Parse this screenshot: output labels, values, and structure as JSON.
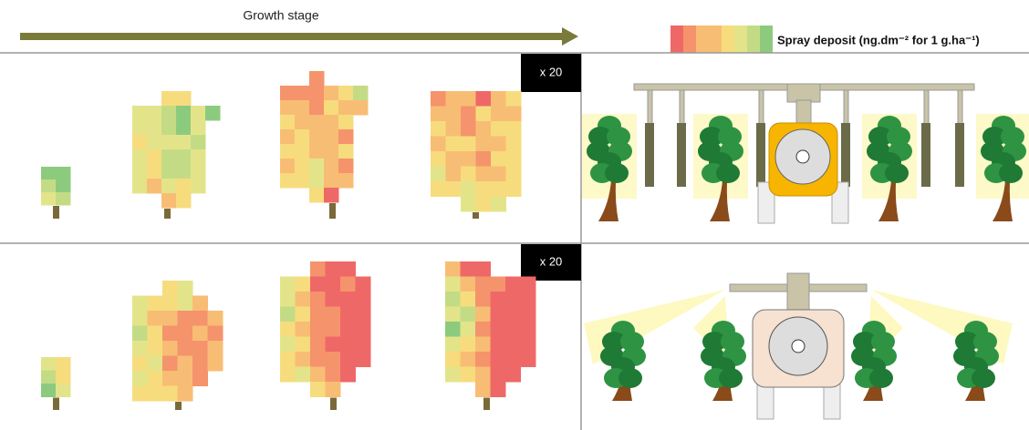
{
  "header": {
    "axis_label": "Growth stage",
    "legend_label": "Spray deposit (ng.dm⁻² for 1 g.ha⁻¹)"
  },
  "panels": [
    {
      "scale": "x 20"
    },
    {
      "scale": "x 20"
    }
  ]
}
